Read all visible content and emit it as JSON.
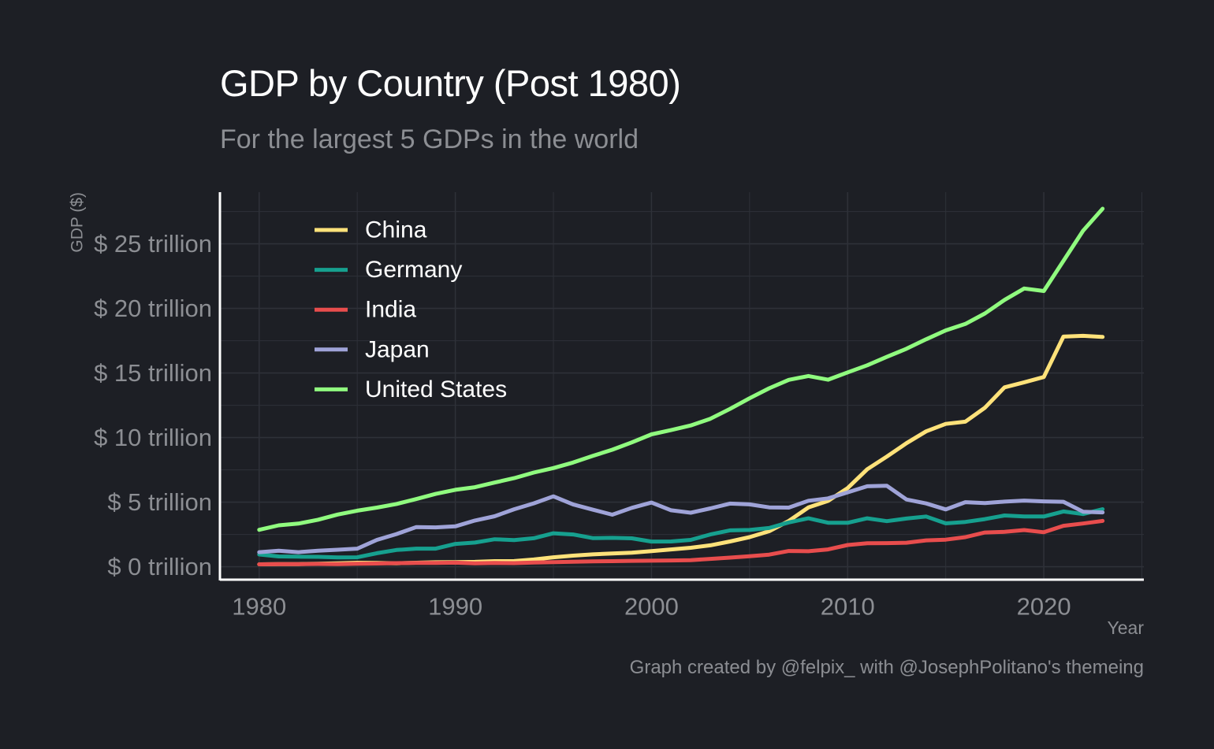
{
  "title": "GDP by Country (Post 1980)",
  "subtitle": "For the largest 5 GDPs in the world",
  "caption": "Graph created by @felpix_ with @JosephPolitano's themeing",
  "colors": {
    "background": "#1d1f25",
    "grid": "#2e3138",
    "axis": "#ffffff",
    "muted_text": "#8c8e93",
    "legend_text": "#ffffff"
  },
  "chart_data": {
    "type": "line",
    "xlabel": "Year",
    "ylabel": "GDP ($)",
    "xlim": [
      1978,
      2025.1
    ],
    "ylim": [
      -1.0,
      29.0
    ],
    "x_ticks": [
      1980,
      1990,
      2000,
      2010,
      2020
    ],
    "x_tick_labels": [
      "1980",
      "1990",
      "2000",
      "2010",
      "2020"
    ],
    "y_ticks": [
      0,
      5,
      10,
      15,
      20,
      25
    ],
    "y_tick_labels": [
      "$ 0 trillion",
      "$ 5 trillion",
      "$ 10 trillion",
      "$ 15 trillion",
      "$ 20 trillion",
      "$ 25 trillion"
    ],
    "y_unit": "trillion USD",
    "grid": true,
    "legend_position": "top-left",
    "x": [
      1980,
      1981,
      1982,
      1983,
      1984,
      1985,
      1986,
      1987,
      1988,
      1989,
      1990,
      1991,
      1992,
      1993,
      1994,
      1995,
      1996,
      1997,
      1998,
      1999,
      2000,
      2001,
      2002,
      2003,
      2004,
      2005,
      2006,
      2007,
      2008,
      2009,
      2010,
      2011,
      2012,
      2013,
      2014,
      2015,
      2016,
      2017,
      2018,
      2019,
      2020,
      2021,
      2022,
      2023
    ],
    "series": [
      {
        "name": "China",
        "color": "#ffe27a",
        "values": [
          0.19,
          0.2,
          0.21,
          0.23,
          0.26,
          0.31,
          0.3,
          0.27,
          0.31,
          0.35,
          0.36,
          0.38,
          0.43,
          0.44,
          0.56,
          0.73,
          0.86,
          0.96,
          1.03,
          1.09,
          1.21,
          1.34,
          1.47,
          1.66,
          1.96,
          2.29,
          2.75,
          3.55,
          4.59,
          5.1,
          6.09,
          7.55,
          8.53,
          9.57,
          10.48,
          11.06,
          11.23,
          12.31,
          13.89,
          14.28,
          14.69,
          17.82,
          17.88,
          17.79
        ]
      },
      {
        "name": "Germany",
        "color": "#16a08f",
        "values": [
          0.95,
          0.8,
          0.78,
          0.77,
          0.72,
          0.73,
          1.05,
          1.3,
          1.4,
          1.4,
          1.77,
          1.87,
          2.13,
          2.07,
          2.21,
          2.59,
          2.5,
          2.22,
          2.24,
          2.2,
          1.95,
          1.96,
          2.08,
          2.5,
          2.82,
          2.85,
          3.0,
          3.43,
          3.75,
          3.41,
          3.4,
          3.75,
          3.53,
          3.73,
          3.89,
          3.36,
          3.47,
          3.69,
          3.97,
          3.89,
          3.89,
          4.28,
          4.08,
          4.46
        ]
      },
      {
        "name": "India",
        "color": "#e84d4d",
        "values": [
          0.19,
          0.2,
          0.2,
          0.22,
          0.21,
          0.23,
          0.25,
          0.28,
          0.3,
          0.3,
          0.32,
          0.27,
          0.29,
          0.28,
          0.33,
          0.36,
          0.39,
          0.42,
          0.43,
          0.46,
          0.47,
          0.49,
          0.51,
          0.61,
          0.71,
          0.82,
          0.94,
          1.22,
          1.2,
          1.34,
          1.68,
          1.82,
          1.83,
          1.86,
          2.04,
          2.1,
          2.29,
          2.65,
          2.7,
          2.84,
          2.67,
          3.17,
          3.35,
          3.55
        ]
      },
      {
        "name": "Japan",
        "color": "#9fa3d8",
        "values": [
          1.13,
          1.24,
          1.13,
          1.24,
          1.32,
          1.4,
          2.08,
          2.53,
          3.07,
          3.05,
          3.13,
          3.58,
          3.91,
          4.45,
          4.91,
          5.45,
          4.83,
          4.42,
          4.03,
          4.56,
          4.97,
          4.37,
          4.18,
          4.52,
          4.89,
          4.83,
          4.6,
          4.58,
          5.11,
          5.29,
          5.76,
          6.23,
          6.27,
          5.21,
          4.9,
          4.44,
          5.0,
          4.93,
          5.04,
          5.12,
          5.06,
          5.03,
          4.26,
          4.21
        ]
      },
      {
        "name": "United States",
        "color": "#90fb7f",
        "values": [
          2.86,
          3.21,
          3.34,
          3.64,
          4.04,
          4.34,
          4.58,
          4.86,
          5.24,
          5.64,
          5.96,
          6.16,
          6.52,
          6.86,
          7.29,
          7.64,
          8.07,
          8.58,
          9.06,
          9.63,
          10.25,
          10.58,
          10.94,
          11.46,
          12.22,
          13.04,
          13.82,
          14.47,
          14.77,
          14.48,
          15.05,
          15.6,
          16.25,
          16.88,
          17.61,
          18.3,
          18.8,
          19.61,
          20.66,
          21.54,
          21.35,
          23.68,
          26.01,
          27.72
        ]
      }
    ]
  }
}
